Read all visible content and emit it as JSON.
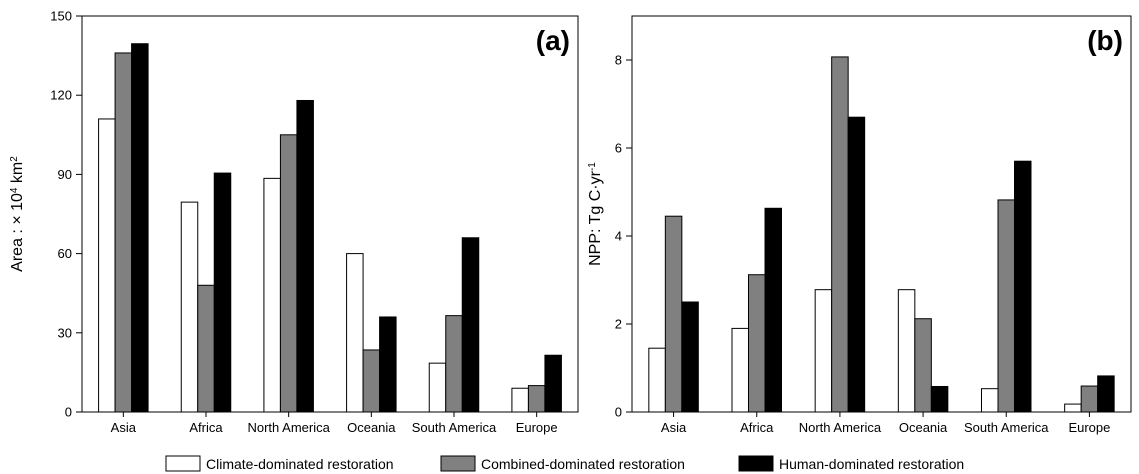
{
  "legend": [
    {
      "key": "climate",
      "label": "Climate-dominated restoration",
      "color": "#ffffff"
    },
    {
      "key": "combined",
      "label": "Combined-dominated restoration",
      "color": "#808080"
    },
    {
      "key": "human",
      "label": "Human-dominated restoration",
      "color": "#000000"
    }
  ],
  "chart_data": [
    {
      "type": "bar",
      "panel_label": "(a)",
      "ylabel": "Area : × 10",
      "ylabel_sup": "4",
      "ylabel_unit": " km",
      "ylabel_unit_sup": "2",
      "ylim": [
        0,
        150
      ],
      "yticks": [
        "0",
        "30",
        "60",
        "90",
        "120",
        "150"
      ],
      "categories": [
        "Asia",
        "Africa",
        "North America",
        "Oceania",
        "South America",
        "Europe"
      ],
      "series": [
        {
          "name": "Climate-dominated restoration",
          "color": "#ffffff",
          "values": [
            111,
            79.5,
            88.5,
            60,
            18.5,
            9
          ]
        },
        {
          "name": "Combined-dominated restoration",
          "color": "#808080",
          "values": [
            136,
            48,
            105,
            23.5,
            36.5,
            10
          ]
        },
        {
          "name": "Human-dominated restoration",
          "color": "#000000",
          "values": [
            139.5,
            90.5,
            118,
            36,
            66,
            21.5
          ]
        }
      ]
    },
    {
      "type": "bar",
      "panel_label": "(b)",
      "ylabel": "NPP: Tg C·yr",
      "ylabel_sup": "-1",
      "ylabel_unit": "",
      "ylabel_unit_sup": "",
      "ylim": [
        0,
        9
      ],
      "yticks": [
        "0",
        "2",
        "4",
        "6",
        "8"
      ],
      "categories": [
        "Asia",
        "Africa",
        "North America",
        "Oceania",
        "South America",
        "Europe"
      ],
      "series": [
        {
          "name": "Climate-dominated restoration",
          "color": "#ffffff",
          "values": [
            1.45,
            1.9,
            2.78,
            2.78,
            0.53,
            0.18
          ]
        },
        {
          "name": "Combined-dominated restoration",
          "color": "#808080",
          "values": [
            4.45,
            3.12,
            8.07,
            2.12,
            4.82,
            0.59
          ]
        },
        {
          "name": "Human-dominated restoration",
          "color": "#000000",
          "values": [
            2.5,
            4.63,
            6.7,
            0.58,
            5.7,
            0.82
          ]
        }
      ]
    }
  ]
}
